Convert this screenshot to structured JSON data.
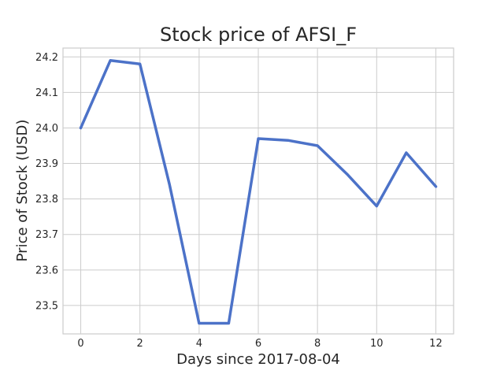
{
  "chart_data": {
    "type": "line",
    "title": "Stock price of AFSI_F",
    "xlabel": "Days since 2017-08-04",
    "ylabel": "Price of Stock (USD)",
    "x": [
      0,
      1,
      2,
      3,
      4,
      5,
      6,
      7,
      8,
      9,
      10,
      11,
      12
    ],
    "series": [
      {
        "values": [
          24.0,
          24.19,
          24.18,
          23.84,
          23.45,
          23.45,
          23.97,
          23.965,
          23.95,
          23.87,
          23.78,
          23.93,
          23.835
        ],
        "color": "#4c72c8"
      }
    ],
    "xlim": [
      -0.6,
      12.6
    ],
    "ylim": [
      23.42,
      24.225
    ],
    "xticks": [
      0,
      2,
      4,
      6,
      8,
      10,
      12
    ],
    "yticks": [
      23.5,
      23.6,
      23.7,
      23.8,
      23.9,
      24.0,
      24.1,
      24.2
    ],
    "grid": true,
    "legend": "none"
  }
}
